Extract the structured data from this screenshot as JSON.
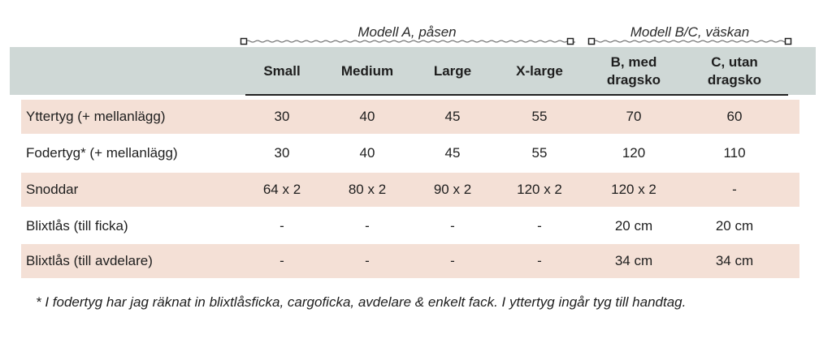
{
  "groups": {
    "a_label": "Modell A, påsen",
    "bc_label": "Modell B/C, väskan"
  },
  "columns": [
    "Small",
    "Medium",
    "Large",
    "X-large",
    "B, med dragsko",
    "C, utan dragsko"
  ],
  "rows": [
    {
      "label": "Yttertyg (+ mellanlägg)",
      "values": [
        "30",
        "40",
        "45",
        "55",
        "70",
        "60"
      ]
    },
    {
      "label": "Fodertyg* (+ mellanlägg)",
      "values": [
        "30",
        "40",
        "45",
        "55",
        "120",
        "110"
      ]
    },
    {
      "label": "Snoddar",
      "values": [
        "64 x 2",
        "80 x 2",
        "90 x 2",
        "120 x 2",
        "120 x 2",
        "-"
      ]
    },
    {
      "label": "Blixtlås (till ficka)",
      "values": [
        "-",
        "-",
        "-",
        "-",
        "20 cm",
        "20 cm"
      ]
    },
    {
      "label": "Blixtlås (till avdelare)",
      "values": [
        "-",
        "-",
        "-",
        "-",
        "34 cm",
        "34 cm"
      ]
    }
  ],
  "footnote": "* I fodertyg har jag räknat in blixtlåsficka, cargoficka, avdelare & enkelt fack. I yttertyg ingår tyg till handtag.",
  "colors": {
    "header_bg": "#cfd8d6",
    "row_shade": "#f4e0d6"
  }
}
